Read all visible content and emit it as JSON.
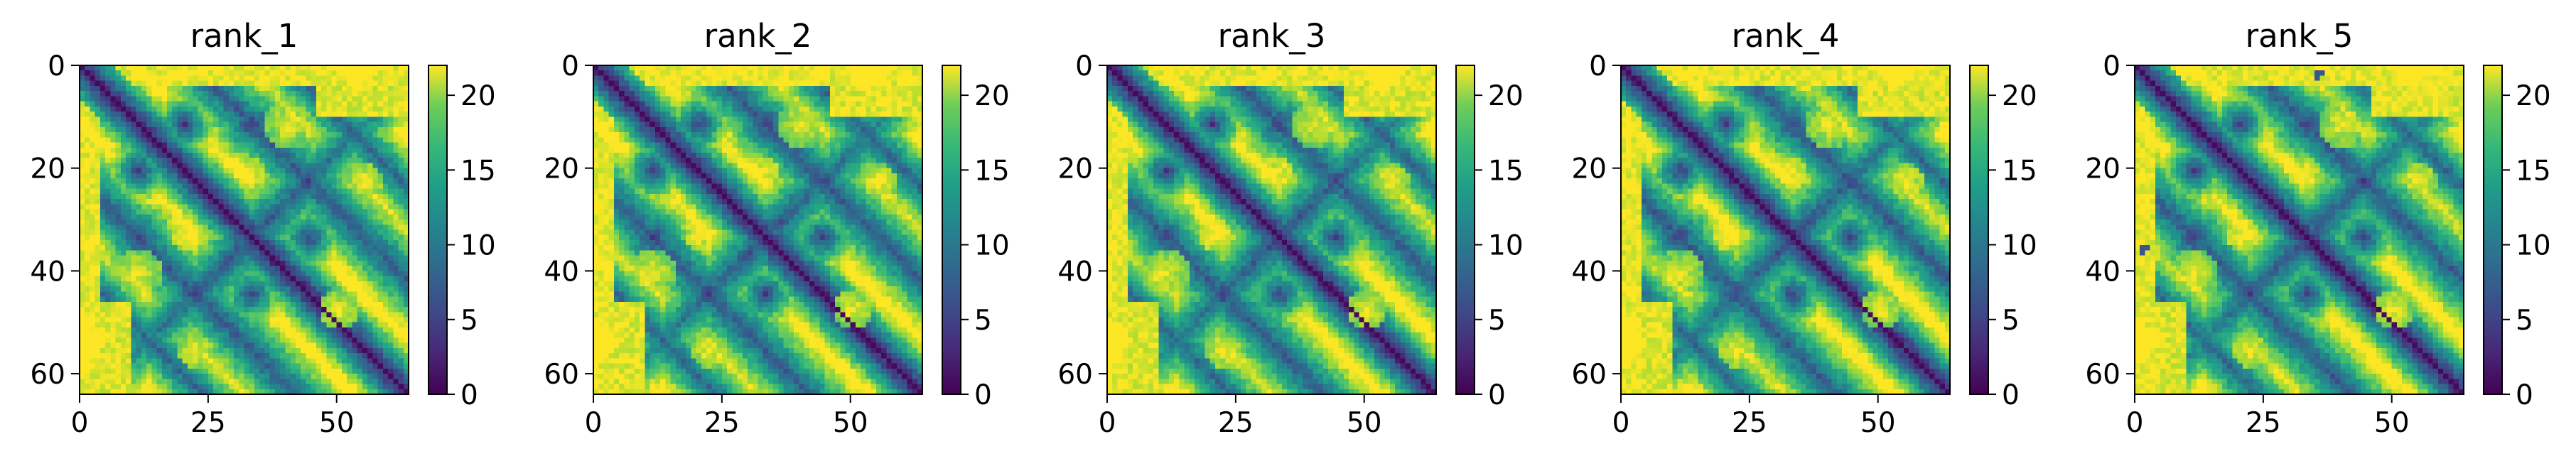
{
  "chart_data": [
    {
      "type": "heatmap",
      "title": "rank_1",
      "matrix_size": 64,
      "x_ticks": [
        "0",
        "25",
        "50"
      ],
      "y_ticks": [
        "0",
        "20",
        "40",
        "60"
      ],
      "colorbar_ticks": [
        "0",
        "5",
        "10",
        "15",
        "20"
      ],
      "color_range": [
        0,
        22
      ],
      "colormap": "viridis",
      "variant": 1
    },
    {
      "type": "heatmap",
      "title": "rank_2",
      "matrix_size": 64,
      "x_ticks": [
        "0",
        "25",
        "50"
      ],
      "y_ticks": [
        "0",
        "20",
        "40",
        "60"
      ],
      "colorbar_ticks": [
        "0",
        "5",
        "10",
        "15",
        "20"
      ],
      "color_range": [
        0,
        22
      ],
      "colormap": "viridis",
      "variant": 2
    },
    {
      "type": "heatmap",
      "title": "rank_3",
      "matrix_size": 64,
      "x_ticks": [
        "0",
        "25",
        "50"
      ],
      "y_ticks": [
        "0",
        "20",
        "40",
        "60"
      ],
      "colorbar_ticks": [
        "0",
        "5",
        "10",
        "15",
        "20"
      ],
      "color_range": [
        0,
        22
      ],
      "colormap": "viridis",
      "variant": 3
    },
    {
      "type": "heatmap",
      "title": "rank_4",
      "matrix_size": 64,
      "x_ticks": [
        "0",
        "25",
        "50"
      ],
      "y_ticks": [
        "0",
        "20",
        "40",
        "60"
      ],
      "colorbar_ticks": [
        "0",
        "5",
        "10",
        "15",
        "20"
      ],
      "color_range": [
        0,
        22
      ],
      "colormap": "viridis",
      "variant": 4
    },
    {
      "type": "heatmap",
      "title": "rank_5",
      "matrix_size": 64,
      "x_ticks": [
        "0",
        "25",
        "50"
      ],
      "y_ticks": [
        "0",
        "20",
        "40",
        "60"
      ],
      "colorbar_ticks": [
        "0",
        "5",
        "10",
        "15",
        "20"
      ],
      "color_range": [
        0,
        22
      ],
      "colormap": "viridis",
      "variant": 5
    }
  ]
}
